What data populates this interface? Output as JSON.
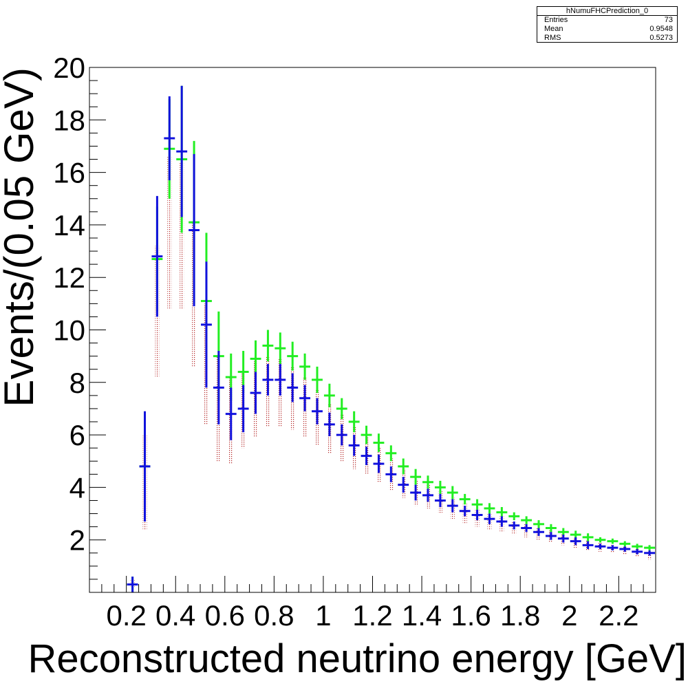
{
  "stats": {
    "title": "hNumuFHCPrediction_0",
    "rows": [
      {
        "label": "Entries",
        "value": "73"
      },
      {
        "label": "Mean",
        "value": "0.9548"
      },
      {
        "label": "RMS",
        "value": "0.5273"
      }
    ]
  },
  "chart_data": {
    "type": "scatter",
    "title": "",
    "xlabel": "Reconstructed neutrino energy [GeV]",
    "ylabel": "Events/(0.05 GeV)",
    "xlim": [
      0.05,
      2.35
    ],
    "ylim": [
      0,
      20
    ],
    "bin_width": 0.05,
    "x_tick_labels": [
      "0.2",
      "0.4",
      "0.6",
      "0.8",
      "1",
      "1.2",
      "1.4",
      "1.6",
      "1.8",
      "2",
      "2.2"
    ],
    "x_tick_values": [
      0.2,
      0.4,
      0.6,
      0.8,
      1.0,
      1.2,
      1.4,
      1.6,
      1.8,
      2.0,
      2.2
    ],
    "y_tick_labels": [
      "2",
      "4",
      "6",
      "8",
      "10",
      "12",
      "14",
      "16",
      "18",
      "20"
    ],
    "y_tick_values": [
      2,
      4,
      6,
      8,
      10,
      12,
      14,
      16,
      18,
      20
    ],
    "colors": {
      "band": "#b22222",
      "green": "#22ee22",
      "blue": "#1111dd"
    },
    "x": [
      0.225,
      0.275,
      0.325,
      0.375,
      0.425,
      0.475,
      0.525,
      0.575,
      0.625,
      0.675,
      0.725,
      0.775,
      0.825,
      0.875,
      0.925,
      0.975,
      1.025,
      1.075,
      1.125,
      1.175,
      1.225,
      1.275,
      1.325,
      1.375,
      1.425,
      1.475,
      1.525,
      1.575,
      1.625,
      1.675,
      1.725,
      1.775,
      1.825,
      1.875,
      1.925,
      1.975,
      2.025,
      2.075,
      2.125,
      2.175,
      2.225,
      2.275,
      2.325
    ],
    "series": [
      {
        "kind": "band",
        "low": [
          0.2,
          2.4,
          8.2,
          10.8,
          10.8,
          8.6,
          6.4,
          5.0,
          4.9,
          5.5,
          5.9,
          6.3,
          6.3,
          6.2,
          5.9,
          5.6,
          5.3,
          5.0,
          4.7,
          4.5,
          4.2,
          3.9,
          3.6,
          3.3,
          3.2,
          3.0,
          2.8,
          2.6,
          2.5,
          2.4,
          2.3,
          2.2,
          2.1,
          2.0,
          1.9,
          1.8,
          1.7,
          1.6,
          1.55,
          1.5,
          1.45,
          1.35,
          1.25
        ],
        "high": [
          0.5,
          6.0,
          13.2,
          16.6,
          16.4,
          14.1,
          11.0,
          9.0,
          8.2,
          8.4,
          8.8,
          9.0,
          8.9,
          8.6,
          8.2,
          7.7,
          7.2,
          6.8,
          6.3,
          5.9,
          5.5,
          5.1,
          4.7,
          4.3,
          4.1,
          3.9,
          3.6,
          3.4,
          3.2,
          3.0,
          2.9,
          2.7,
          2.6,
          2.45,
          2.35,
          2.2,
          2.1,
          2.0,
          1.9,
          1.8,
          1.75,
          1.65,
          1.55
        ]
      },
      {
        "kind": "points",
        "color": "green",
        "y": [
          0.3,
          4.8,
          12.7,
          16.9,
          16.5,
          14.1,
          11.1,
          9.0,
          8.2,
          8.4,
          8.9,
          9.4,
          9.3,
          9.0,
          8.6,
          8.1,
          7.5,
          7.0,
          6.5,
          6.0,
          5.7,
          5.3,
          4.8,
          4.4,
          4.2,
          4.0,
          3.8,
          3.55,
          3.35,
          3.2,
          3.05,
          2.9,
          2.75,
          2.6,
          2.45,
          2.3,
          2.2,
          2.1,
          2.0,
          1.95,
          1.85,
          1.75,
          1.7
        ],
        "err": [
          0.3,
          2.0,
          2.0,
          1.9,
          2.8,
          3.1,
          2.6,
          1.7,
          0.9,
          0.8,
          0.7,
          0.6,
          0.6,
          0.55,
          0.5,
          0.5,
          0.45,
          0.4,
          0.4,
          0.35,
          0.35,
          0.3,
          0.3,
          0.3,
          0.25,
          0.25,
          0.25,
          0.2,
          0.2,
          0.2,
          0.2,
          0.15,
          0.15,
          0.15,
          0.15,
          0.15,
          0.15,
          0.15,
          0.1,
          0.1,
          0.1,
          0.1,
          0.1
        ]
      },
      {
        "kind": "points",
        "color": "blue",
        "y": [
          0.3,
          4.8,
          12.8,
          17.3,
          16.8,
          13.8,
          10.2,
          7.8,
          6.8,
          7.0,
          7.6,
          8.1,
          8.1,
          7.8,
          7.4,
          6.9,
          6.4,
          6.0,
          5.6,
          5.2,
          4.9,
          4.5,
          4.1,
          3.8,
          3.7,
          3.5,
          3.3,
          3.1,
          2.95,
          2.8,
          2.7,
          2.55,
          2.45,
          2.3,
          2.15,
          2.05,
          1.95,
          1.8,
          1.75,
          1.7,
          1.65,
          1.55,
          1.5
        ],
        "err": [
          0.3,
          2.1,
          2.3,
          1.6,
          2.5,
          2.9,
          2.4,
          1.4,
          1.0,
          0.9,
          0.8,
          0.6,
          0.6,
          0.55,
          0.5,
          0.5,
          0.45,
          0.4,
          0.4,
          0.35,
          0.35,
          0.3,
          0.3,
          0.3,
          0.25,
          0.25,
          0.25,
          0.2,
          0.2,
          0.2,
          0.2,
          0.15,
          0.15,
          0.15,
          0.15,
          0.15,
          0.15,
          0.15,
          0.1,
          0.1,
          0.1,
          0.1,
          0.1
        ]
      }
    ]
  }
}
